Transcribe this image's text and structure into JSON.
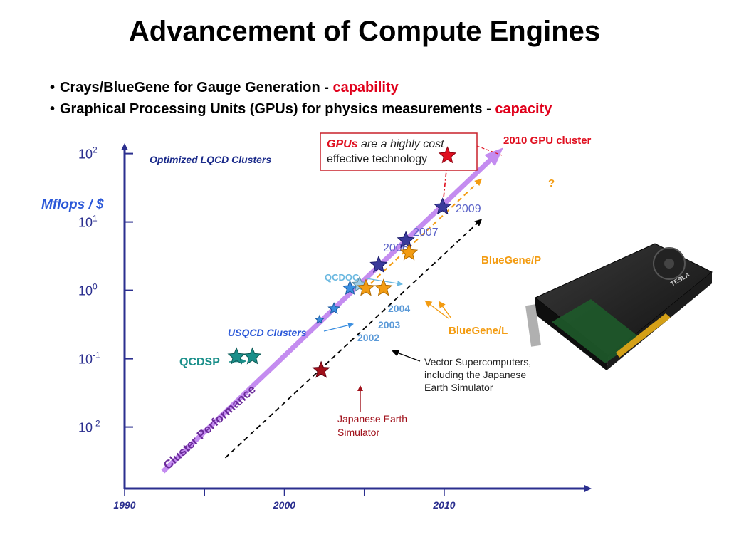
{
  "title": "Advancement of Compute Engines",
  "bullets": [
    {
      "text": "Crays/BlueGene for Gauge Generation",
      "sep": "-",
      "keyword": "capability"
    },
    {
      "text": "Graphical Processing Units (GPUs) for physics measurements",
      "sep": "-",
      "keyword": "capacity"
    }
  ],
  "colors": {
    "axis": "#2b2f8f",
    "cluster": "#3a3a9a",
    "gpu": "#e01020",
    "bluegene": "#f39c12",
    "qcdsp": "#1a8f8a",
    "earth": "#a0101a",
    "usqcd": "#3a8ee0",
    "qcdoc_fill": "#9ecde8",
    "trend": "#c48cf0",
    "label_blue": "#5a62c8"
  },
  "chart_data": {
    "type": "scatter",
    "title": "",
    "ylabel": "Mflops / $",
    "y_scale": "log",
    "xlim": [
      1990,
      2019
    ],
    "ylim_exp": [
      -2.9,
      2.1
    ],
    "y_ticks": [
      {
        "exp": 2,
        "base": "10",
        "sup": "2"
      },
      {
        "exp": 1,
        "base": "10",
        "sup": "1"
      },
      {
        "exp": 0,
        "base": "10",
        "sup": "0"
      },
      {
        "exp": -1,
        "base": "10",
        "sup": "-1"
      },
      {
        "exp": -2,
        "base": "10",
        "sup": "-2"
      }
    ],
    "x_ticks": [
      1990,
      1995,
      2000,
      2005,
      2010
    ],
    "x_tick_labels": {
      "1990": "1990",
      "2000": "2000",
      "2010": "2010"
    },
    "points": [
      {
        "name": "qcdsp-1",
        "x": 1997,
        "exp": -0.97,
        "group": "qcdsp",
        "size": 12
      },
      {
        "name": "qcdsp-2",
        "x": 1998,
        "exp": -0.97,
        "group": "qcdsp",
        "size": 12
      },
      {
        "name": "usqcd-2002",
        "x": 2002.2,
        "exp": -0.43,
        "group": "usqcd",
        "size": 6
      },
      {
        "name": "usqcd-2003",
        "x": 2003.1,
        "exp": -0.27,
        "group": "usqcd",
        "size": 8
      },
      {
        "name": "usqcd-2004",
        "x": 2004.1,
        "exp": 0.03,
        "group": "usqcd",
        "size": 10
      },
      {
        "name": "qcdoc",
        "x": 2004.7,
        "exp": 0.08,
        "group": "qcdoc",
        "size": 11
      },
      {
        "name": "cluster-2006",
        "x": 2005.9,
        "exp": 0.37,
        "group": "cluster",
        "size": 12
      },
      {
        "name": "cluster-2007",
        "x": 2007.6,
        "exp": 0.73,
        "group": "cluster",
        "size": 12
      },
      {
        "name": "cluster-2009",
        "x": 2009.9,
        "exp": 1.22,
        "group": "cluster",
        "size": 12
      },
      {
        "name": "gpu-2010",
        "x": 2010.2,
        "exp": 1.97,
        "group": "gpu",
        "size": 12
      },
      {
        "name": "bluegene-l-1",
        "x": 2005.1,
        "exp": 0.03,
        "group": "bluegene",
        "size": 12
      },
      {
        "name": "bluegene-l-2",
        "x": 2006.2,
        "exp": 0.03,
        "group": "bluegene",
        "size": 12
      },
      {
        "name": "bluegene-p",
        "x": 2007.8,
        "exp": 0.55,
        "group": "bluegene",
        "size": 12
      },
      {
        "name": "earth-simulator",
        "x": 2002.3,
        "exp": -1.17,
        "group": "earth",
        "size": 12
      }
    ],
    "trend_lines": [
      {
        "name": "cluster-performance-arrow",
        "from": [
          1992.4,
          -2.65
        ],
        "to": [
          2013.3,
          2.0
        ],
        "style": "solid-purple"
      },
      {
        "name": "vector-supercomputers-trend",
        "from": [
          1996.3,
          -2.45
        ],
        "to": [
          2012.3,
          1.03
        ],
        "style": "dashed-black"
      },
      {
        "name": "bluegene-trend",
        "from": [
          2005.4,
          0.1
        ],
        "to": [
          2012.3,
          1.62
        ],
        "style": "dashed-orange"
      },
      {
        "name": "gpu-trend",
        "from": [
          2009.9,
          1.22
        ],
        "to": [
          2010.2,
          1.9
        ],
        "style": "dashdot-red"
      }
    ],
    "annotations": {
      "optimized_clusters": "Optimized LQCD Clusters",
      "gpus_prefix": "GPUs",
      "gpus_line1_rest": " are a highly cost",
      "gpus_line2": "effective technology",
      "gpu_cluster": "2010 GPU cluster",
      "question_mark": "?",
      "year_2009": "2009",
      "year_2007": "2007",
      "year_2006": "2006",
      "year_2004": "2004",
      "year_2003": "2003",
      "year_2002": "2002",
      "qcdoc": "QCDOC",
      "bluegene_p": "BlueGene/P",
      "bluegene_l": "BlueGene/L",
      "usqcd": "USQCD Clusters",
      "qcdsp": "QCDSP",
      "vector_line1": "Vector Supercomputers,",
      "vector_line2": "including the Japanese",
      "vector_line3": "Earth Simulator",
      "earth_line1": "Japanese Earth",
      "earth_line2": "Simulator",
      "cluster_performance": "Cluster Performance"
    }
  },
  "gpu_card_brand": "TESLA"
}
